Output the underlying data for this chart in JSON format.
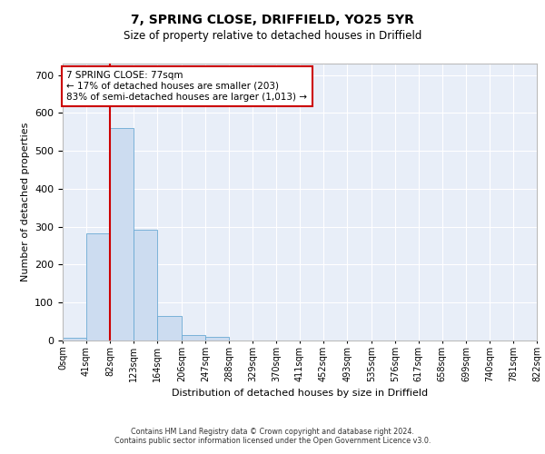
{
  "title": "7, SPRING CLOSE, DRIFFIELD, YO25 5YR",
  "subtitle": "Size of property relative to detached houses in Driffield",
  "xlabel": "Distribution of detached houses by size in Driffield",
  "ylabel": "Number of detached properties",
  "bar_color": "#ccdcf0",
  "bar_edge_color": "#6aaad4",
  "background_color": "#e8eef8",
  "grid_color": "#ffffff",
  "annotation_text": "7 SPRING CLOSE: 77sqm\n← 17% of detached houses are smaller (203)\n83% of semi-detached houses are larger (1,013) →",
  "vline_x": 82,
  "vline_color": "#cc0000",
  "annotation_box_color": "#cc0000",
  "bin_edges": [
    0,
    41,
    82,
    123,
    164,
    206,
    247,
    288,
    329,
    370,
    411,
    452,
    493,
    535,
    576,
    617,
    658,
    699,
    740,
    781,
    822
  ],
  "bin_counts": [
    8,
    283,
    560,
    293,
    65,
    15,
    10,
    0,
    0,
    0,
    0,
    0,
    0,
    0,
    0,
    0,
    0,
    0,
    0,
    0
  ],
  "ylim": [
    0,
    730
  ],
  "yticks": [
    0,
    100,
    200,
    300,
    400,
    500,
    600,
    700
  ],
  "tick_labels": [
    "0sqm",
    "41sqm",
    "82sqm",
    "123sqm",
    "164sqm",
    "206sqm",
    "247sqm",
    "288sqm",
    "329sqm",
    "370sqm",
    "411sqm",
    "452sqm",
    "493sqm",
    "535sqm",
    "576sqm",
    "617sqm",
    "658sqm",
    "699sqm",
    "740sqm",
    "781sqm",
    "822sqm"
  ],
  "footer_line1": "Contains HM Land Registry data © Crown copyright and database right 2024.",
  "footer_line2": "Contains public sector information licensed under the Open Government Licence v3.0."
}
